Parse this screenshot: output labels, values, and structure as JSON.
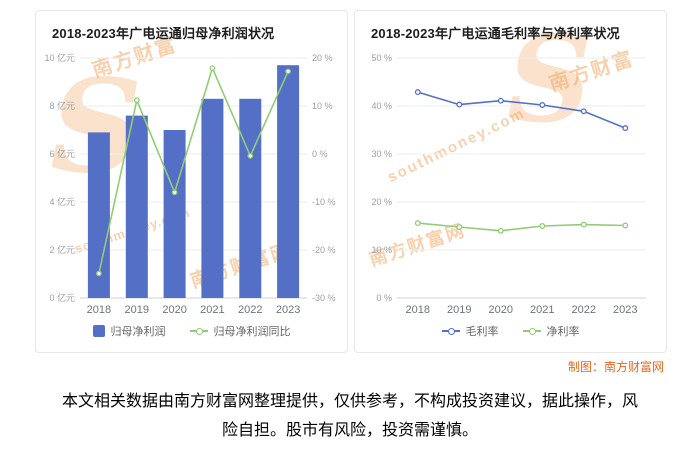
{
  "page": {
    "credit": "制图：南方财富网",
    "disclaimer": "本文相关数据由南方财富网整理提供，仅供参考，不构成投资建议，据此操作，风险自担。股市有风险，投资需谨慎。"
  },
  "watermarks": {
    "brand_cn": "南方财富",
    "brand_cn_full": "南方财富网",
    "brand_en": "southmoney.com",
    "logo_letter": "S"
  },
  "colors": {
    "bar_blue": "#5470c6",
    "line_green": "#91cc75",
    "credit_orange": "#e9661f"
  },
  "chart_data": [
    {
      "type": "bar",
      "title": "2018-2023年广电运通归母净利润状况",
      "categories": [
        "2018",
        "2019",
        "2020",
        "2021",
        "2022",
        "2023"
      ],
      "series": [
        {
          "name": "归母净利润",
          "type": "bar",
          "axis": "left",
          "unit": "亿元",
          "color": "#5470c6",
          "values": [
            6.9,
            7.6,
            7.0,
            8.3,
            8.3,
            9.7
          ]
        },
        {
          "name": "归母净利润同比",
          "type": "line",
          "axis": "right",
          "unit": "%",
          "color": "#91cc75",
          "values": [
            -24.9,
            11.2,
            -8.0,
            17.9,
            -0.4,
            17.2
          ]
        }
      ],
      "y_left": {
        "min": 0,
        "max": 10,
        "step": 2,
        "suffix": " 亿元"
      },
      "y_right": {
        "min": -30,
        "max": 20,
        "step": 10,
        "suffix": " %"
      },
      "legend": [
        "归母净利润",
        "归母净利润同比"
      ],
      "grid": true,
      "legend_position": "bottom"
    },
    {
      "type": "line",
      "title": "2018-2023年广电运通毛利率与净利率状况",
      "categories": [
        "2018",
        "2019",
        "2020",
        "2021",
        "2022",
        "2023"
      ],
      "series": [
        {
          "name": "毛利率",
          "type": "line",
          "unit": "%",
          "color": "#5470c6",
          "values": [
            42.9,
            40.3,
            41.1,
            40.2,
            38.9,
            35.4
          ]
        },
        {
          "name": "净利率",
          "type": "line",
          "unit": "%",
          "color": "#91cc75",
          "values": [
            15.6,
            14.8,
            14.0,
            15.0,
            15.3,
            15.1
          ]
        }
      ],
      "y": {
        "min": 0,
        "max": 50,
        "step": 10,
        "suffix": " %"
      },
      "legend": [
        "毛利率",
        "净利率"
      ],
      "grid": true,
      "legend_position": "bottom"
    }
  ]
}
